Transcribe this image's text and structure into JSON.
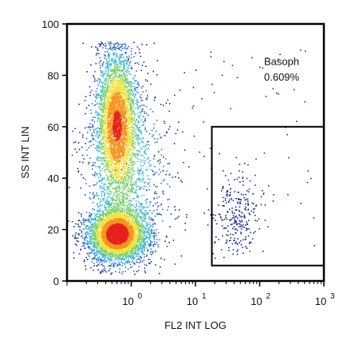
{
  "chart_data": {
    "type": "scatter",
    "subtype": "flow-cytometry-density-dot-plot",
    "xlabel": "FL2 INT LOG",
    "ylabel": "SS INT LIN",
    "x_scale": "log",
    "xlim": [
      0.1,
      1000
    ],
    "ylim": [
      0,
      100
    ],
    "x_ticks": [
      {
        "value": 1,
        "base": "10",
        "exp": "0"
      },
      {
        "value": 10,
        "label": "10",
        "base": "10",
        "exp": "1"
      },
      {
        "value": 100,
        "base": "10",
        "exp": "2"
      },
      {
        "value": 1000,
        "base": "10",
        "exp": "3"
      }
    ],
    "y_ticks": [
      {
        "value": 0,
        "label": "0"
      },
      {
        "value": 20,
        "label": "20"
      },
      {
        "value": 40,
        "label": "40"
      },
      {
        "value": 60,
        "label": "60"
      },
      {
        "value": 80,
        "label": "80"
      },
      {
        "value": 100,
        "label": "100"
      }
    ],
    "populations": [
      {
        "center_x": 0.6,
        "center_y": 18,
        "spread_logx": 0.22,
        "spread_y": 5,
        "weight": 0.5
      },
      {
        "center_x": 0.6,
        "center_y": 62,
        "spread_logx": 0.16,
        "spread_y": 14,
        "weight": 0.4
      },
      {
        "center_x": 0.9,
        "center_y": 40,
        "spread_logx": 0.35,
        "spread_y": 18,
        "weight": 0.1
      }
    ],
    "gate": {
      "name": "Basoph",
      "percent": "0.609%",
      "x_range": [
        18,
        1000
      ],
      "y_range": [
        6,
        60
      ],
      "cluster_center_x": 45,
      "cluster_center_y": 26,
      "cluster_spread_logx": 0.18,
      "cluster_spread_y": 8
    },
    "density_colors": [
      "#1a2a9c",
      "#2f6fd0",
      "#3fb8e0",
      "#7ed36a",
      "#f2e23a",
      "#f7931e",
      "#e5221c"
    ]
  }
}
